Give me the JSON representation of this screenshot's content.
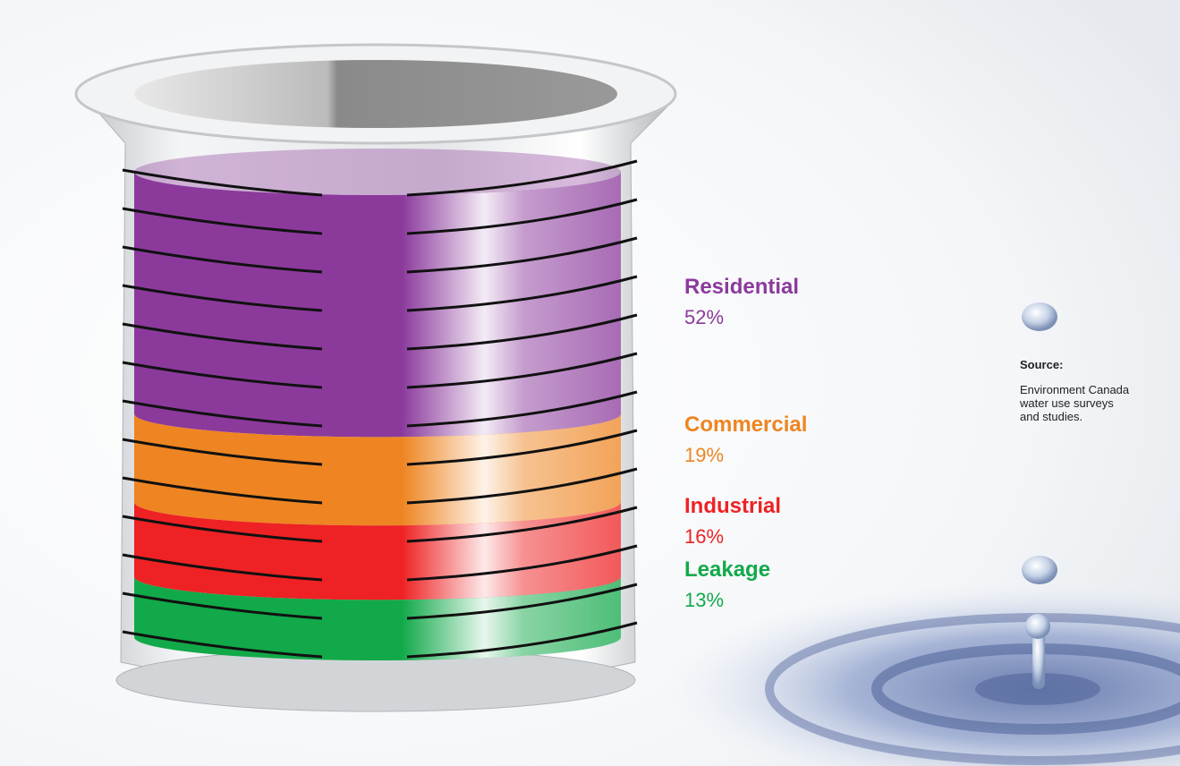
{
  "chart_data": {
    "type": "beaker",
    "series": [
      {
        "name": "Residential",
        "color": "#8b3a9c",
        "values": [
          52
        ],
        "value_labels": [
          "52%"
        ]
      },
      {
        "name": "Commercial",
        "color": "#ee8522",
        "values": [
          19
        ],
        "value_labels": [
          "19%"
        ]
      },
      {
        "name": "Industrial",
        "color": "#ee2224",
        "values": [
          16
        ],
        "value_labels": [
          "16%"
        ]
      },
      {
        "name": "Leakage",
        "color": "#12a94a",
        "values": [
          13
        ],
        "value_labels": [
          "13%"
        ]
      }
    ],
    "source": {
      "label": "Source:",
      "lines": [
        "Environment Canada",
        "water use surveys",
        "and studies."
      ]
    }
  }
}
